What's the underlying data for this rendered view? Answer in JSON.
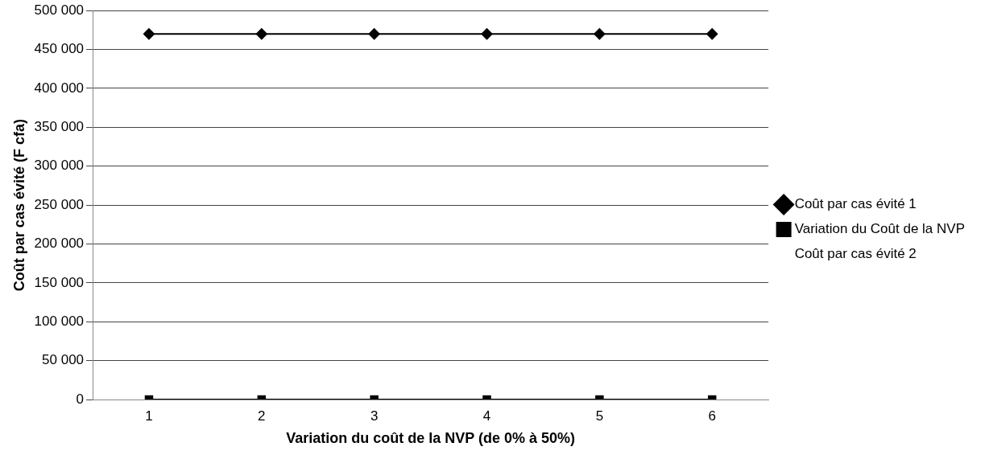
{
  "chart_data": {
    "type": "line",
    "xlabel": "Variation du coût de la NVP (de 0% à 50%)",
    "ylabel": "Coût par cas évité (F cfa)",
    "categories": [
      "1",
      "2",
      "3",
      "4",
      "5",
      "6"
    ],
    "series": [
      {
        "name": "Coût par cas évité 1",
        "color": "#000000",
        "marker": "diamond",
        "values": [
          470000,
          470000,
          470000,
          470000,
          470000,
          470000
        ]
      },
      {
        "name": "Variation du Coût de la NVP",
        "color": "#000000",
        "marker": "square",
        "values": [
          0,
          0,
          0,
          0,
          0,
          0
        ]
      },
      {
        "name": "Coût par cas évité 2",
        "values": [
          null,
          null,
          null,
          null,
          null,
          null
        ]
      }
    ],
    "ylim": [
      0,
      500000
    ],
    "yticks": [
      {
        "value": 0,
        "label": "0"
      },
      {
        "value": 50000,
        "label": "50 000"
      },
      {
        "value": 100000,
        "label": "100 000"
      },
      {
        "value": 150000,
        "label": "150 000"
      },
      {
        "value": 200000,
        "label": "200 000"
      },
      {
        "value": 250000,
        "label": "250 000"
      },
      {
        "value": 300000,
        "label": "300 000"
      },
      {
        "value": 350000,
        "label": "350 000"
      },
      {
        "value": 400000,
        "label": "400 000"
      },
      {
        "value": 450000,
        "label": "450 000"
      },
      {
        "value": 500000,
        "label": "500 000"
      }
    ],
    "grid": "y",
    "legend": "right",
    "line_style": "solid"
  }
}
